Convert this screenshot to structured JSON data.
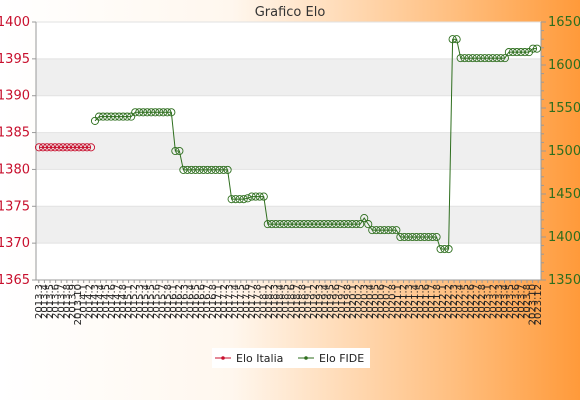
{
  "chart_data": {
    "type": "line",
    "title": "Grafico Elo",
    "xlabel": "",
    "ylabel": "",
    "y_left": {
      "min": 1365,
      "max": 1400,
      "ticks": [
        1365,
        1370,
        1375,
        1380,
        1385,
        1390,
        1395,
        1400
      ],
      "color": "#c8102e"
    },
    "y_right": {
      "min": 1350,
      "max": 1650,
      "ticks": [
        1350,
        1400,
        1450,
        1500,
        1550,
        1600,
        1650
      ],
      "color": "#2e6e1e"
    },
    "x_tick_labels": [
      "2013.3",
      "2013.4",
      "2013.5",
      "2013.6",
      "2013.7",
      "2013.8",
      "2013.9",
      "2013.10",
      "2014.1",
      "2014.2",
      "2014.3",
      "2014.4",
      "2014.5",
      "2014.6",
      "2014.7",
      "2014.8",
      "2015.1",
      "2015.2",
      "2015.3",
      "2015.4",
      "2015.5",
      "2015.6",
      "2015.7",
      "2015.8",
      "2016.1",
      "2016.2",
      "2016.3",
      "2016.4",
      "2016.5",
      "2016.6",
      "2016.7",
      "2016.8",
      "2017.1",
      "2017.2",
      "2017.3",
      "2017.4",
      "2017.5",
      "2017.6",
      "2017.7",
      "2017.8",
      "2018.1",
      "2018.2",
      "2018.3",
      "2018.4",
      "2018.5",
      "2018.6",
      "2018.7",
      "2018.8",
      "2019.1",
      "2019.2",
      "2019.3",
      "2019.4",
      "2019.5",
      "2019.6",
      "2019.7",
      "2019.8",
      "2020.1",
      "2020.2",
      "2020.3",
      "2020.4",
      "2020.5",
      "2020.6",
      "2020.7",
      "2020.8",
      "2021.1",
      "2021.2",
      "2021.3",
      "2021.4",
      "2021.5",
      "2021.6",
      "2021.7",
      "2021.8",
      "2022.1",
      "2022.2",
      "2022.3",
      "2022.4",
      "2022.5",
      "2022.6",
      "2022.7",
      "2022.8",
      "2023.1",
      "2023.2",
      "2023.3",
      "2023.4",
      "2023.5",
      "2023.6",
      "2023.7",
      "2023.8",
      "2023.10",
      "2023.12"
    ],
    "grid": true,
    "legend_position": "bottom-center",
    "series": [
      {
        "name": "Elo Italia",
        "axis": "left",
        "color": "#c8102e",
        "values": [
          1383,
          1383,
          1383,
          1383,
          1383,
          1383,
          1383,
          1383,
          1383,
          1383,
          1383,
          1383,
          1383,
          1383
        ]
      },
      {
        "name": "Elo FIDE",
        "axis": "right",
        "color": "#2e6e1e",
        "values": [
          1535,
          1540,
          1540,
          1540,
          1540,
          1540,
          1540,
          1540,
          1540,
          1540,
          1545,
          1545,
          1545,
          1545,
          1545,
          1545,
          1545,
          1545,
          1545,
          1545,
          1500,
          1500,
          1478,
          1478,
          1478,
          1478,
          1478,
          1478,
          1478,
          1478,
          1478,
          1478,
          1478,
          1478,
          1444,
          1444,
          1444,
          1444,
          1445,
          1447,
          1447,
          1447,
          1447,
          1415,
          1415,
          1415,
          1415,
          1415,
          1415,
          1415,
          1415,
          1415,
          1415,
          1415,
          1415,
          1415,
          1415,
          1415,
          1415,
          1415,
          1415,
          1415,
          1415,
          1415,
          1415,
          1415,
          1415,
          1422,
          1415,
          1408,
          1408,
          1408,
          1408,
          1408,
          1408,
          1408,
          1400,
          1400,
          1400,
          1400,
          1400,
          1400,
          1400,
          1400,
          1400,
          1400,
          1386,
          1386,
          1386,
          1630,
          1630,
          1608,
          1608,
          1608,
          1608,
          1608,
          1608,
          1608,
          1608,
          1608,
          1608,
          1608,
          1608,
          1615,
          1615,
          1615,
          1615,
          1615,
          1615,
          1619,
          1619
        ]
      }
    ]
  }
}
